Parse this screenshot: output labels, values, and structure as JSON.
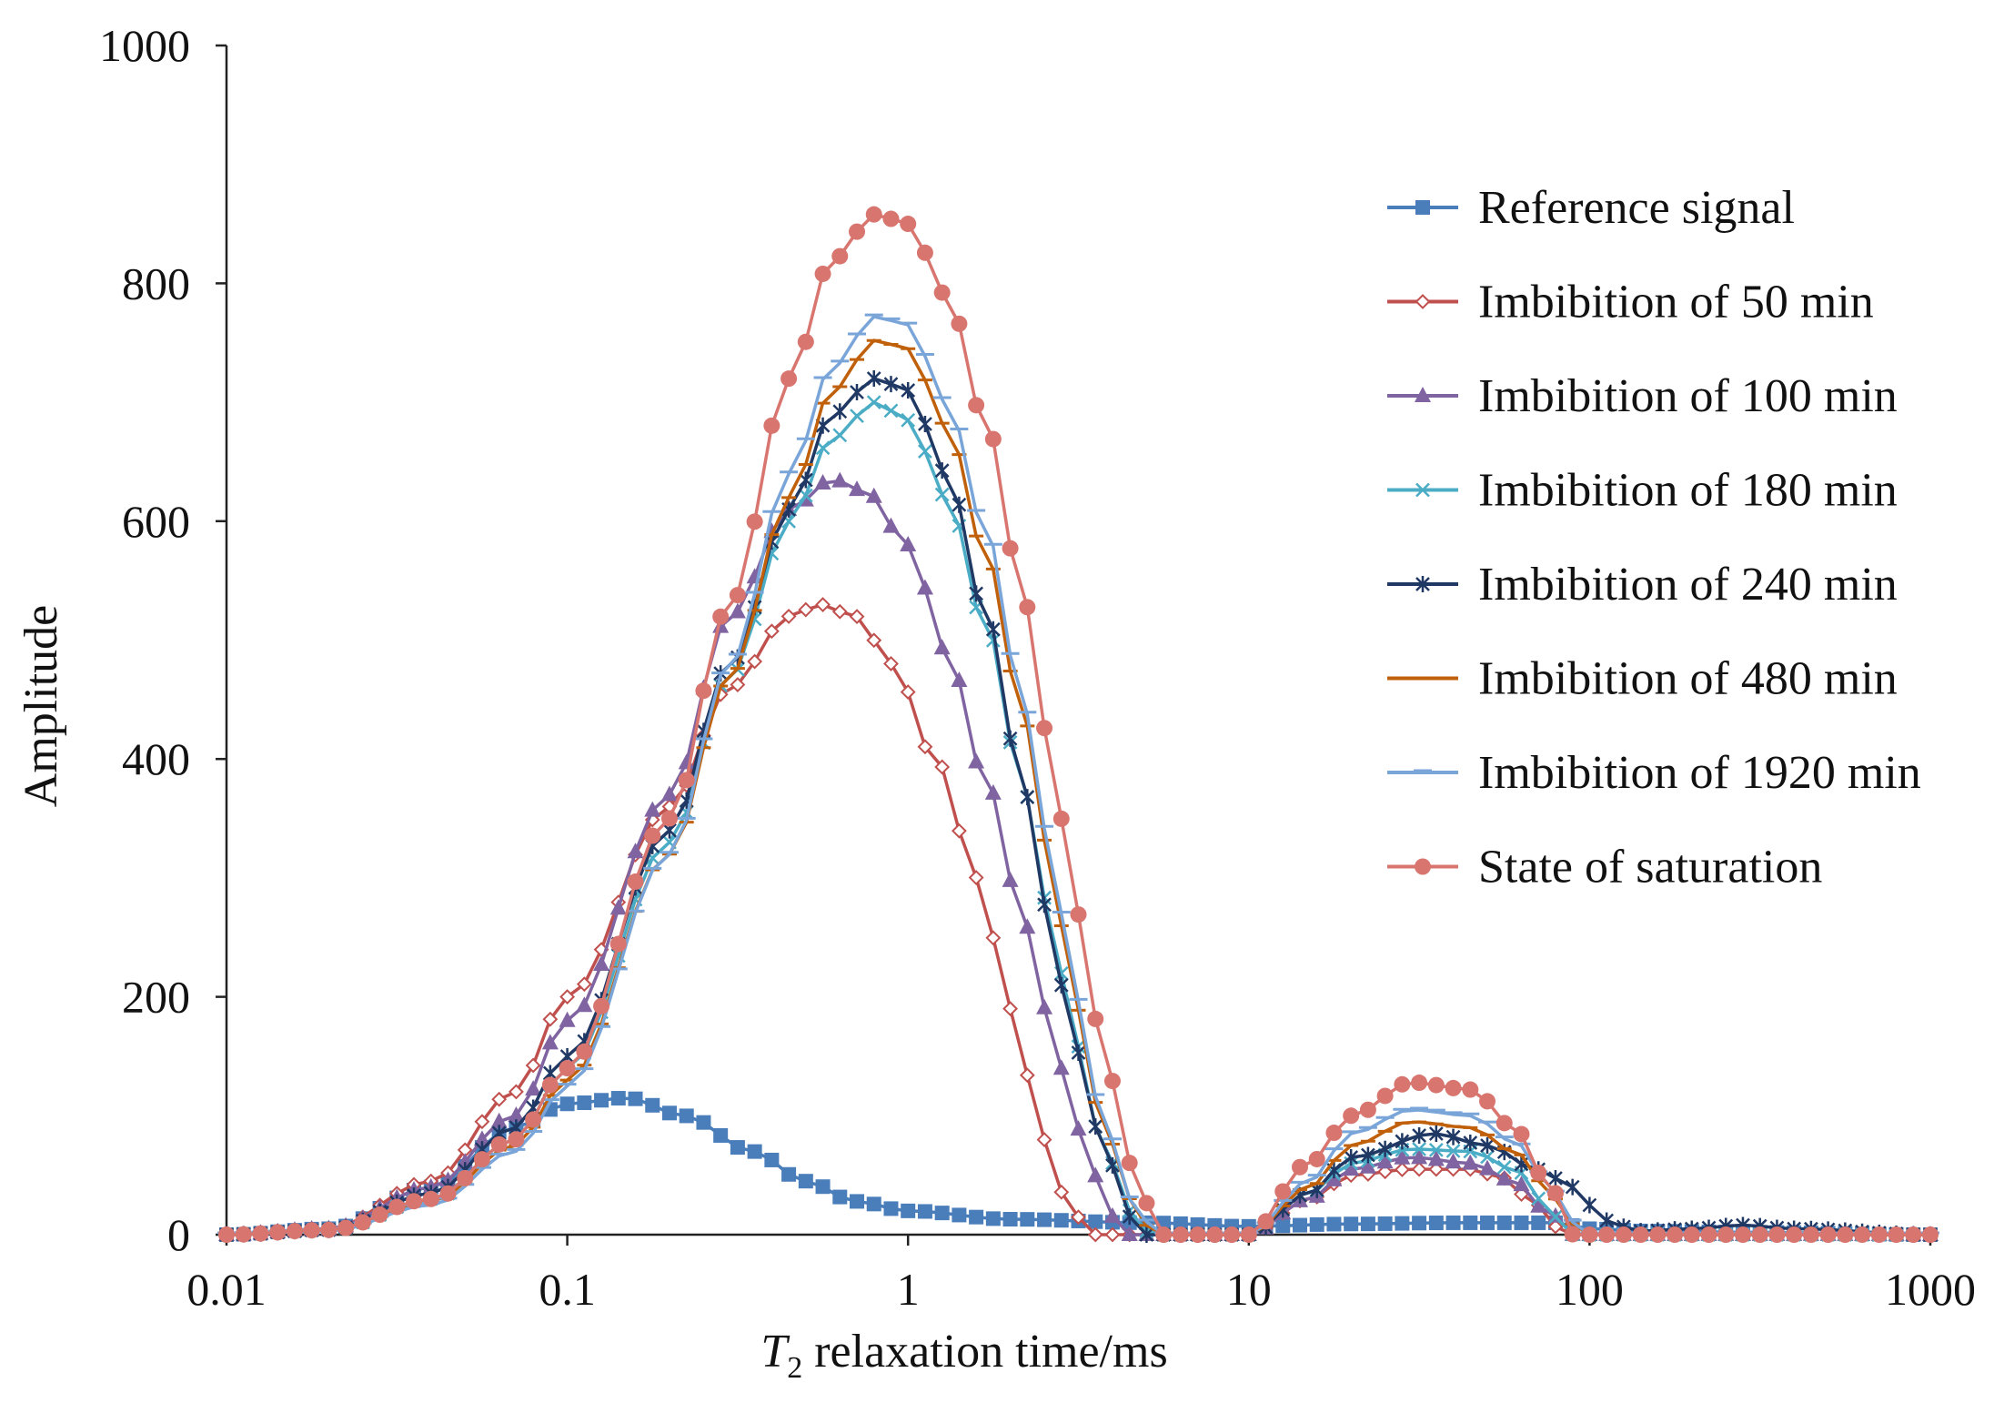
{
  "chart_data": {
    "type": "line",
    "title": "",
    "xlabel_italic": "T",
    "xlabel_sub": "2",
    "xlabel_rest": " relaxation time/ms",
    "ylabel": "Amplitude",
    "xscale": "log",
    "xlim": [
      0.01,
      1000
    ],
    "ylim": [
      0,
      1000
    ],
    "x_ticks": [
      {
        "value": 0.01,
        "label": "0.01"
      },
      {
        "value": 0.1,
        "label": "0.1"
      },
      {
        "value": 1,
        "label": "1"
      },
      {
        "value": 10,
        "label": "10"
      },
      {
        "value": 100,
        "label": "100"
      },
      {
        "value": 1000,
        "label": "1000"
      }
    ],
    "y_ticks": [
      {
        "value": 0,
        "label": "0"
      },
      {
        "value": 200,
        "label": "200"
      },
      {
        "value": 400,
        "label": "400"
      },
      {
        "value": 600,
        "label": "600"
      },
      {
        "value": 800,
        "label": "800"
      },
      {
        "value": 1000,
        "label": "1000"
      }
    ],
    "grid": false,
    "legend_position": "right",
    "series": [
      {
        "name": "Reference signal",
        "color": "#4a7ebb",
        "marker": "square",
        "points": [
          [
            0.01,
            0
          ],
          [
            0.02,
            5
          ],
          [
            0.04,
            40
          ],
          [
            0.07,
            90
          ],
          [
            0.1,
            110
          ],
          [
            0.15,
            115
          ],
          [
            0.22,
            100
          ],
          [
            0.35,
            70
          ],
          [
            0.5,
            45
          ],
          [
            0.7,
            28
          ],
          [
            1,
            20
          ],
          [
            2,
            13
          ],
          [
            5,
            10
          ],
          [
            10,
            7
          ],
          [
            20,
            9
          ],
          [
            40,
            10
          ],
          [
            80,
            10
          ],
          [
            100,
            5
          ],
          [
            150,
            3
          ],
          [
            300,
            2
          ],
          [
            1000,
            0
          ]
        ]
      },
      {
        "name": "Imbibition of 50 min",
        "color": "#c0504d",
        "marker": "diamond",
        "points": [
          [
            0.01,
            0
          ],
          [
            0.02,
            5
          ],
          [
            0.04,
            45
          ],
          [
            0.07,
            120
          ],
          [
            0.1,
            200
          ],
          [
            0.2,
            360
          ],
          [
            0.3,
            460
          ],
          [
            0.45,
            520
          ],
          [
            0.55,
            530
          ],
          [
            0.7,
            520
          ],
          [
            0.9,
            480
          ],
          [
            1.2,
            400
          ],
          [
            1.6,
            300
          ],
          [
            2,
            190
          ],
          [
            2.5,
            80
          ],
          [
            3,
            20
          ],
          [
            3.5,
            0
          ],
          [
            6,
            0
          ],
          [
            10,
            0
          ],
          [
            15,
            30
          ],
          [
            20,
            50
          ],
          [
            30,
            55
          ],
          [
            45,
            55
          ],
          [
            55,
            48
          ],
          [
            70,
            25
          ],
          [
            85,
            0
          ],
          [
            100,
            0
          ],
          [
            1000,
            0
          ]
        ]
      },
      {
        "name": "Imbibition of 100 min",
        "color": "#8064a2",
        "marker": "triangle",
        "points": [
          [
            0.01,
            0
          ],
          [
            0.02,
            5
          ],
          [
            0.04,
            40
          ],
          [
            0.07,
            100
          ],
          [
            0.1,
            180
          ],
          [
            0.2,
            370
          ],
          [
            0.3,
            520
          ],
          [
            0.45,
            610
          ],
          [
            0.6,
            635
          ],
          [
            0.75,
            625
          ],
          [
            1,
            580
          ],
          [
            1.3,
            490
          ],
          [
            1.7,
            380
          ],
          [
            2.2,
            260
          ],
          [
            2.8,
            140
          ],
          [
            3.5,
            50
          ],
          [
            4.3,
            0
          ],
          [
            6,
            0
          ],
          [
            10,
            0
          ],
          [
            15,
            30
          ],
          [
            20,
            55
          ],
          [
            30,
            65
          ],
          [
            45,
            60
          ],
          [
            60,
            45
          ],
          [
            75,
            20
          ],
          [
            90,
            0
          ],
          [
            1000,
            0
          ]
        ]
      },
      {
        "name": "Imbibition of 180 min",
        "color": "#4bacc6",
        "marker": "x",
        "points": [
          [
            0.01,
            0
          ],
          [
            0.02,
            4
          ],
          [
            0.04,
            30
          ],
          [
            0.07,
            80
          ],
          [
            0.1,
            140
          ],
          [
            0.2,
            330
          ],
          [
            0.3,
            470
          ],
          [
            0.45,
            600
          ],
          [
            0.6,
            670
          ],
          [
            0.8,
            700
          ],
          [
            1,
            685
          ],
          [
            1.3,
            620
          ],
          [
            1.7,
            510
          ],
          [
            2.2,
            370
          ],
          [
            2.8,
            220
          ],
          [
            3.6,
            90
          ],
          [
            4.5,
            20
          ],
          [
            5.2,
            0
          ],
          [
            8,
            0
          ],
          [
            10,
            0
          ],
          [
            15,
            35
          ],
          [
            20,
            60
          ],
          [
            30,
            72
          ],
          [
            45,
            70
          ],
          [
            60,
            55
          ],
          [
            80,
            15
          ],
          [
            90,
            0
          ],
          [
            1000,
            0
          ]
        ]
      },
      {
        "name": "Imbibition of 240 min",
        "color": "#1f3864",
        "marker": "star",
        "points": [
          [
            0.01,
            0
          ],
          [
            0.02,
            4
          ],
          [
            0.04,
            35
          ],
          [
            0.07,
            90
          ],
          [
            0.1,
            150
          ],
          [
            0.2,
            340
          ],
          [
            0.3,
            480
          ],
          [
            0.45,
            610
          ],
          [
            0.6,
            690
          ],
          [
            0.8,
            720
          ],
          [
            1,
            710
          ],
          [
            1.3,
            640
          ],
          [
            1.7,
            520
          ],
          [
            2.2,
            370
          ],
          [
            2.8,
            210
          ],
          [
            3.6,
            90
          ],
          [
            4.5,
            15
          ],
          [
            5,
            0
          ],
          [
            8,
            0
          ],
          [
            10,
            0
          ],
          [
            15,
            35
          ],
          [
            20,
            65
          ],
          [
            35,
            85
          ],
          [
            50,
            75
          ],
          [
            70,
            55
          ],
          [
            90,
            40
          ],
          [
            110,
            12
          ],
          [
            140,
            3
          ],
          [
            200,
            5
          ],
          [
            280,
            8
          ],
          [
            400,
            5
          ],
          [
            1000,
            0
          ]
        ]
      },
      {
        "name": "Imbibition of 480 min",
        "color": "#c0600a",
        "marker": "dash",
        "points": [
          [
            0.01,
            0
          ],
          [
            0.02,
            4
          ],
          [
            0.04,
            28
          ],
          [
            0.07,
            75
          ],
          [
            0.1,
            130
          ],
          [
            0.2,
            320
          ],
          [
            0.3,
            470
          ],
          [
            0.45,
            620
          ],
          [
            0.6,
            710
          ],
          [
            0.8,
            752
          ],
          [
            1,
            745
          ],
          [
            1.3,
            680
          ],
          [
            1.7,
            570
          ],
          [
            2.2,
            430
          ],
          [
            2.8,
            260
          ],
          [
            3.6,
            110
          ],
          [
            4.5,
            30
          ],
          [
            5.3,
            0
          ],
          [
            8,
            0
          ],
          [
            10,
            0
          ],
          [
            15,
            40
          ],
          [
            20,
            75
          ],
          [
            30,
            95
          ],
          [
            45,
            90
          ],
          [
            60,
            70
          ],
          [
            80,
            30
          ],
          [
            95,
            0
          ],
          [
            1000,
            0
          ]
        ]
      },
      {
        "name": "Imbibition of 1920 min",
        "color": "#7aa5d9",
        "marker": "hline",
        "points": [
          [
            0.01,
            0
          ],
          [
            0.02,
            3
          ],
          [
            0.04,
            25
          ],
          [
            0.07,
            70
          ],
          [
            0.1,
            125
          ],
          [
            0.2,
            320
          ],
          [
            0.3,
            480
          ],
          [
            0.45,
            640
          ],
          [
            0.6,
            730
          ],
          [
            0.8,
            772
          ],
          [
            1,
            765
          ],
          [
            1.3,
            700
          ],
          [
            1.7,
            590
          ],
          [
            2.2,
            440
          ],
          [
            2.8,
            270
          ],
          [
            3.6,
            115
          ],
          [
            4.5,
            30
          ],
          [
            5.4,
            0
          ],
          [
            8,
            0
          ],
          [
            10,
            0
          ],
          [
            15,
            45
          ],
          [
            20,
            85
          ],
          [
            30,
            105
          ],
          [
            45,
            100
          ],
          [
            60,
            78
          ],
          [
            80,
            35
          ],
          [
            95,
            0
          ],
          [
            1000,
            0
          ]
        ]
      },
      {
        "name": "State of saturation",
        "color": "#d8756f",
        "marker": "circle",
        "points": [
          [
            0.01,
            0
          ],
          [
            0.02,
            4
          ],
          [
            0.04,
            30
          ],
          [
            0.07,
            80
          ],
          [
            0.1,
            140
          ],
          [
            0.2,
            350
          ],
          [
            0.3,
            530
          ],
          [
            0.45,
            720
          ],
          [
            0.6,
            820
          ],
          [
            0.8,
            858
          ],
          [
            1,
            850
          ],
          [
            1.3,
            790
          ],
          [
            1.7,
            680
          ],
          [
            2.2,
            530
          ],
          [
            2.8,
            350
          ],
          [
            3.6,
            180
          ],
          [
            4.5,
            60
          ],
          [
            5.5,
            0
          ],
          [
            8,
            0
          ],
          [
            10,
            0
          ],
          [
            15,
            60
          ],
          [
            20,
            100
          ],
          [
            30,
            128
          ],
          [
            45,
            122
          ],
          [
            60,
            90
          ],
          [
            75,
            45
          ],
          [
            90,
            0
          ],
          [
            1000,
            0
          ]
        ]
      }
    ]
  }
}
